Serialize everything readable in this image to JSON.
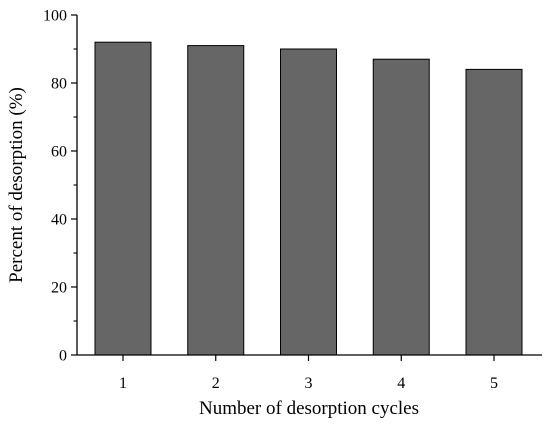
{
  "chart_data": {
    "type": "bar",
    "title": "",
    "xlabel": "Number of desorption cycles",
    "ylabel": "Percent of desorption (%)",
    "categories": [
      "1",
      "2",
      "3",
      "4",
      "5"
    ],
    "values": [
      92,
      91,
      90,
      87,
      84
    ],
    "ylim": [
      0,
      100
    ],
    "yticks": [
      0,
      20,
      40,
      60,
      80,
      100
    ],
    "ytick_labels": [
      "0",
      "20",
      "40",
      "60",
      "80",
      "100"
    ],
    "bar_color": "#666666",
    "grid": false,
    "legend": "none"
  }
}
